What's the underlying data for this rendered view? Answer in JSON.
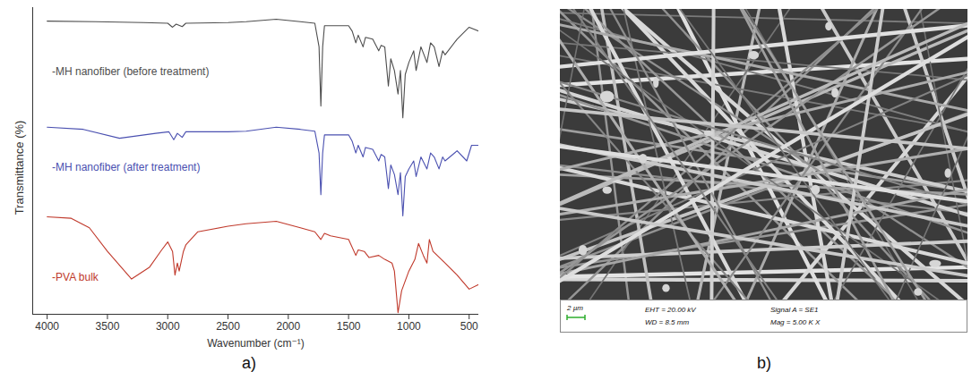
{
  "panel_labels": [
    "a)",
    "b)"
  ],
  "chart_data": {
    "type": "line",
    "xlabel": "Wavenumber (cm⁻¹)",
    "ylabel": "Transmittance (%)",
    "xlim": [
      4120,
      420
    ],
    "xticks": [
      4000,
      3500,
      3000,
      2500,
      2000,
      1500,
      1000,
      500
    ],
    "ylim": [
      0,
      100
    ],
    "yticks": [],
    "tick_labels": "x",
    "grid": false,
    "series": [
      {
        "name": "-MH nanofiber (before treatment)",
        "color": "#4d4d4d",
        "x": [
          4000,
          3600,
          3200,
          3000,
          2960,
          2930,
          2880,
          2850,
          2500,
          2350,
          2100,
          1900,
          1780,
          1745,
          1730,
          1715,
          1700,
          1500,
          1470,
          1440,
          1420,
          1380,
          1360,
          1300,
          1250,
          1230,
          1200,
          1170,
          1150,
          1120,
          1090,
          1070,
          1050,
          1030,
          1000,
          960,
          940,
          900,
          850,
          820,
          790,
          750,
          720,
          700,
          600,
          500,
          420
        ],
        "values": [
          95.6,
          95.4,
          95.1,
          94.9,
          93.6,
          94.6,
          93.8,
          94.9,
          95.1,
          95.4,
          96.2,
          95.4,
          94.9,
          87.2,
          67.9,
          87.2,
          94.1,
          94.1,
          92.3,
          88.5,
          91.0,
          87.2,
          90.3,
          89.7,
          85.9,
          87.7,
          87.2,
          74.4,
          83.3,
          79.5,
          71.8,
          79.5,
          64.1,
          78.2,
          82.1,
          85.9,
          79.5,
          87.2,
          82.1,
          88.5,
          87.2,
          80.8,
          85.9,
          84.6,
          89.7,
          93.6,
          92.3
        ]
      },
      {
        "name": "-MH nanofiber (after treatment)",
        "color": "#4a50b0",
        "x": [
          4000,
          3700,
          3400,
          3100,
          2990,
          2950,
          2920,
          2880,
          2850,
          2500,
          2350,
          2100,
          1900,
          1780,
          1745,
          1730,
          1715,
          1700,
          1500,
          1470,
          1440,
          1420,
          1380,
          1360,
          1300,
          1250,
          1230,
          1200,
          1170,
          1150,
          1120,
          1090,
          1070,
          1050,
          1030,
          1000,
          960,
          940,
          900,
          850,
          820,
          790,
          750,
          720,
          700,
          600,
          520,
          480,
          420
        ],
        "values": [
          61.0,
          60.3,
          57.4,
          59.0,
          59.5,
          56.9,
          59.0,
          57.7,
          59.5,
          59.5,
          59.7,
          61.0,
          60.3,
          59.7,
          52.6,
          39.0,
          52.6,
          58.5,
          58.5,
          56.4,
          52.6,
          55.1,
          51.3,
          54.4,
          53.8,
          50.0,
          52.1,
          51.3,
          41.0,
          48.7,
          45.6,
          39.0,
          46.2,
          32.1,
          44.9,
          47.4,
          50.0,
          44.9,
          51.3,
          47.4,
          52.6,
          51.3,
          47.4,
          51.3,
          50.0,
          53.3,
          50.0,
          55.1,
          55.1
        ]
      },
      {
        "name": "-PVA bulk",
        "color": "#c0392b",
        "x": [
          4000,
          3800,
          3650,
          3500,
          3300,
          3150,
          3050,
          3000,
          2960,
          2940,
          2920,
          2905,
          2870,
          2850,
          2750,
          2500,
          2350,
          2100,
          1900,
          1780,
          1730,
          1700,
          1650,
          1500,
          1440,
          1420,
          1370,
          1330,
          1250,
          1200,
          1140,
          1120,
          1090,
          1060,
          1000,
          950,
          920,
          880,
          850,
          830,
          800,
          700,
          600,
          500,
          420
        ],
        "values": [
          31.8,
          31.3,
          28.2,
          20.5,
          11.5,
          15.4,
          21.0,
          23.6,
          20.5,
          12.8,
          16.7,
          14.1,
          20.5,
          22.6,
          26.9,
          28.7,
          29.5,
          30.3,
          28.2,
          26.9,
          24.4,
          26.4,
          25.6,
          24.4,
          19.2,
          21.0,
          20.5,
          18.5,
          19.2,
          17.9,
          16.7,
          14.1,
          0.5,
          7.7,
          14.1,
          17.9,
          23.1,
          19.2,
          16.7,
          24.4,
          20.5,
          16.7,
          12.8,
          8.2,
          9.7
        ]
      }
    ]
  },
  "sem_image": {
    "scale_bar": "2 µm",
    "info": [
      "EHT = 20.00 kV",
      "WD = 8.5 mm",
      "Signal A = SE1",
      "Mag = 5.00 K X"
    ]
  }
}
